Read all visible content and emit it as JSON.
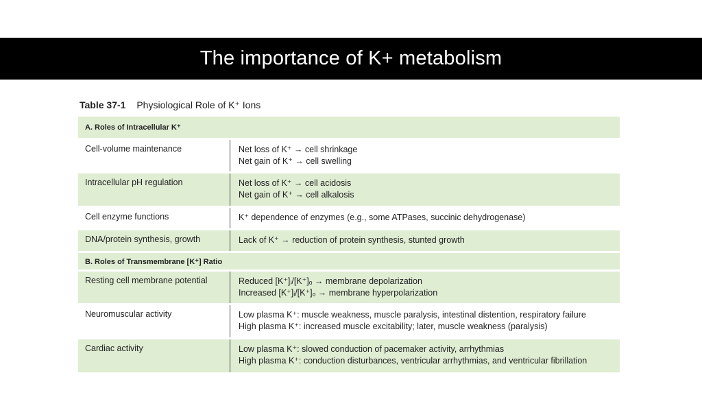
{
  "slide": {
    "title": "The importance of K+ metabolism"
  },
  "table": {
    "number": "Table 37-1",
    "caption": "Physiological Role of K⁺ Ions",
    "sections": [
      {
        "header": "A. Roles of Intracellular K⁺",
        "rows": [
          {
            "role": "Cell-volume maintenance",
            "lines": [
              "Net loss of K⁺ → cell shrinkage",
              "Net gain of K⁺ → cell swelling"
            ]
          },
          {
            "role": "Intracellular pH regulation",
            "lines": [
              "Net loss of K⁺ → cell acidosis",
              "Net gain of K⁺ → cell alkalosis"
            ]
          },
          {
            "role": "Cell enzyme functions",
            "lines": [
              "K⁺ dependence of enzymes (e.g., some ATPases, succinic dehydrogenase)"
            ]
          },
          {
            "role": "DNA/protein synthesis, growth",
            "lines": [
              "Lack of K⁺ → reduction of protein synthesis, stunted growth"
            ]
          }
        ]
      },
      {
        "header": "B. Roles of Transmembrane [K⁺] Ratio",
        "rows": [
          {
            "role": "Resting cell membrane potential",
            "lines": [
              "Reduced [K⁺]ᵢ/[K⁺]ₒ → membrane depolarization",
              "Increased [K⁺]ᵢ/[K⁺]ₒ → membrane hyperpolarization"
            ]
          },
          {
            "role": "Neuromuscular activity",
            "lines": [
              "Low plasma K⁺: muscle weakness, muscle paralysis, intestinal distention, respiratory failure",
              "High plasma K⁺: increased muscle excitability; later, muscle weakness (paralysis)"
            ]
          },
          {
            "role": "Cardiac activity",
            "lines": [
              "Low plasma K⁺: slowed conduction of pacemaker activity, arrhythmias",
              "High plasma K⁺: conduction disturbances, ventricular arrhythmias, and ventricular fibrillation"
            ]
          }
        ]
      }
    ]
  }
}
